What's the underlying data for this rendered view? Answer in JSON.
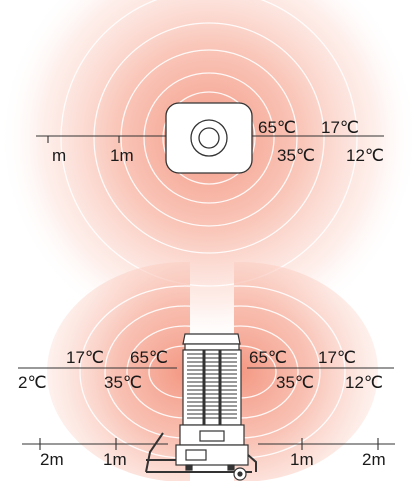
{
  "top_view": {
    "temps": {
      "t65": "65℃",
      "t17": "17℃",
      "t35": "35℃",
      "t12": "12℃"
    },
    "distances": {
      "m": "m",
      "one_m": "1m"
    }
  },
  "side_view": {
    "left_temps": {
      "t17": "17℃",
      "t65": "65℃",
      "t2": "2℃",
      "t35": "35℃"
    },
    "right_temps": {
      "t65": "65℃",
      "t17": "17℃",
      "t35": "35℃",
      "t12": "12℃"
    },
    "distances": {
      "left_2m": "2m",
      "left_1m": "1m",
      "right_1m": "1m",
      "right_2m": "2m"
    }
  },
  "colors": {
    "heat_core": "#f39a86",
    "heat_outer": "#fde7e1",
    "ring": "#ffffff",
    "line": "#333333"
  }
}
